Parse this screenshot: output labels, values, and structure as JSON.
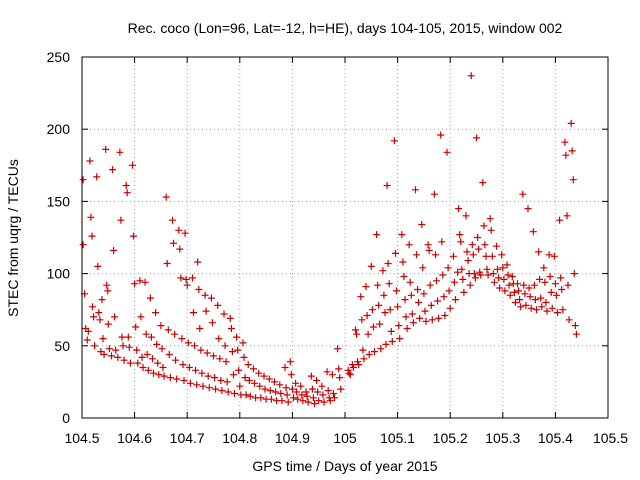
{
  "chart_data": {
    "type": "scatter",
    "title": "Rec. coco (Lon=96, Lat=-12, h=HE), days 104-105, 2015, window 002",
    "xlabel": "GPS time / Days of year 2015",
    "ylabel": "STEC from uqrg / TECUs",
    "xlim": [
      104.5,
      105.5
    ],
    "ylim": [
      0,
      250
    ],
    "x_ticks": [
      104.5,
      104.6,
      104.7,
      104.8,
      104.9,
      105,
      105.1,
      105.2,
      105.3,
      105.4,
      105.5
    ],
    "x_tick_labels": [
      "104.5",
      "104.6",
      "104.7",
      "104.8",
      "104.9",
      "105",
      "105.1",
      "105.2",
      "105.3",
      "105.4",
      "105.5"
    ],
    "y_ticks": [
      0,
      50,
      100,
      150,
      200,
      250
    ],
    "y_tick_labels": [
      "0",
      "50",
      "100",
      "150",
      "200",
      "250"
    ],
    "grid": true,
    "legend": "none",
    "marker": "+",
    "color": "#cc0000",
    "points": [
      [
        104.502,
        165
      ],
      [
        104.502,
        120
      ],
      [
        104.505,
        86
      ],
      [
        104.507,
        62
      ],
      [
        104.51,
        54
      ],
      [
        104.512,
        60
      ],
      [
        104.515,
        178
      ],
      [
        104.517,
        139
      ],
      [
        104.519,
        126
      ],
      [
        104.52,
        77
      ],
      [
        104.522,
        70
      ],
      [
        104.524,
        50
      ],
      [
        104.528,
        167
      ],
      [
        104.53,
        105
      ],
      [
        104.532,
        73
      ],
      [
        104.534,
        68
      ],
      [
        104.536,
        46
      ],
      [
        104.538,
        82
      ],
      [
        104.54,
        55
      ],
      [
        104.542,
        44
      ],
      [
        104.545,
        186
      ],
      [
        104.547,
        92
      ],
      [
        104.549,
        88
      ],
      [
        104.55,
        65
      ],
      [
        104.552,
        48
      ],
      [
        104.556,
        43
      ],
      [
        104.558,
        172
      ],
      [
        104.56,
        116
      ],
      [
        104.562,
        70
      ],
      [
        104.564,
        47
      ],
      [
        104.568,
        42
      ],
      [
        104.572,
        184
      ],
      [
        104.574,
        137
      ],
      [
        104.576,
        56
      ],
      [
        104.578,
        50
      ],
      [
        104.58,
        40
      ],
      [
        104.584,
        161
      ],
      [
        104.586,
        156
      ],
      [
        104.588,
        56
      ],
      [
        104.59,
        49
      ],
      [
        104.592,
        38
      ],
      [
        104.596,
        175
      ],
      [
        104.598,
        126
      ],
      [
        104.6,
        93
      ],
      [
        104.602,
        63
      ],
      [
        104.604,
        47
      ],
      [
        104.606,
        38
      ],
      [
        104.61,
        95
      ],
      [
        104.612,
        70
      ],
      [
        104.614,
        42
      ],
      [
        104.616,
        35
      ],
      [
        104.62,
        94
      ],
      [
        104.622,
        58
      ],
      [
        104.624,
        44
      ],
      [
        104.626,
        33
      ],
      [
        104.63,
        83
      ],
      [
        104.632,
        56
      ],
      [
        104.634,
        41
      ],
      [
        104.636,
        31
      ],
      [
        104.64,
        73
      ],
      [
        104.642,
        51
      ],
      [
        104.644,
        38
      ],
      [
        104.646,
        30
      ],
      [
        104.65,
        64
      ],
      [
        104.652,
        48
      ],
      [
        104.654,
        35
      ],
      [
        104.656,
        29
      ],
      [
        104.66,
        153
      ],
      [
        104.662,
        107
      ],
      [
        104.664,
        61
      ],
      [
        104.666,
        44
      ],
      [
        104.668,
        28
      ],
      [
        104.672,
        137
      ],
      [
        104.674,
        121
      ],
      [
        104.676,
        58
      ],
      [
        104.678,
        40
      ],
      [
        104.68,
        27
      ],
      [
        104.684,
        130
      ],
      [
        104.686,
        117
      ],
      [
        104.688,
        97
      ],
      [
        104.69,
        55
      ],
      [
        104.692,
        37
      ],
      [
        104.694,
        26
      ],
      [
        104.696,
        128
      ],
      [
        104.698,
        96
      ],
      [
        104.7,
        92
      ],
      [
        104.702,
        52
      ],
      [
        104.704,
        35
      ],
      [
        104.706,
        24
      ],
      [
        104.71,
        97
      ],
      [
        104.712,
        73
      ],
      [
        104.714,
        50
      ],
      [
        104.716,
        33
      ],
      [
        104.718,
        23
      ],
      [
        104.72,
        108
      ],
      [
        104.722,
        89
      ],
      [
        104.724,
        62
      ],
      [
        104.726,
        47
      ],
      [
        104.728,
        31
      ],
      [
        104.73,
        22
      ],
      [
        104.734,
        85
      ],
      [
        104.736,
        74
      ],
      [
        104.738,
        45
      ],
      [
        104.74,
        29
      ],
      [
        104.742,
        21
      ],
      [
        104.746,
        83
      ],
      [
        104.748,
        66
      ],
      [
        104.75,
        43
      ],
      [
        104.752,
        28
      ],
      [
        104.754,
        20
      ],
      [
        104.758,
        78
      ],
      [
        104.76,
        55
      ],
      [
        104.762,
        41
      ],
      [
        104.764,
        26
      ],
      [
        104.766,
        19
      ],
      [
        104.77,
        72
      ],
      [
        104.772,
        50
      ],
      [
        104.774,
        39
      ],
      [
        104.776,
        25
      ],
      [
        104.778,
        18
      ],
      [
        104.782,
        69
      ],
      [
        104.784,
        62
      ],
      [
        104.786,
        46
      ],
      [
        104.788,
        30
      ],
      [
        104.79,
        17
      ],
      [
        104.794,
        56
      ],
      [
        104.796,
        47
      ],
      [
        104.798,
        33
      ],
      [
        104.8,
        22
      ],
      [
        104.802,
        16
      ],
      [
        104.806,
        52
      ],
      [
        104.808,
        42
      ],
      [
        104.81,
        28
      ],
      [
        104.812,
        16
      ],
      [
        104.816,
        37
      ],
      [
        104.818,
        26
      ],
      [
        104.82,
        15
      ],
      [
        104.826,
        34
      ],
      [
        104.828,
        24
      ],
      [
        104.83,
        14
      ],
      [
        104.836,
        31
      ],
      [
        104.838,
        22
      ],
      [
        104.84,
        14
      ],
      [
        104.846,
        29
      ],
      [
        104.848,
        20
      ],
      [
        104.85,
        13
      ],
      [
        104.856,
        27
      ],
      [
        104.858,
        19
      ],
      [
        104.86,
        13
      ],
      [
        104.866,
        25
      ],
      [
        104.868,
        18
      ],
      [
        104.87,
        12
      ],
      [
        104.876,
        23
      ],
      [
        104.878,
        17
      ],
      [
        104.88,
        12
      ],
      [
        104.886,
        35
      ],
      [
        104.888,
        21
      ],
      [
        104.89,
        16
      ],
      [
        104.892,
        11
      ],
      [
        104.896,
        39
      ],
      [
        104.898,
        30
      ],
      [
        104.9,
        20
      ],
      [
        104.902,
        14
      ],
      [
        104.906,
        24
      ],
      [
        104.908,
        18
      ],
      [
        104.91,
        13
      ],
      [
        104.916,
        22
      ],
      [
        104.918,
        16
      ],
      [
        104.92,
        12
      ],
      [
        104.926,
        18
      ],
      [
        104.928,
        15
      ],
      [
        104.93,
        11
      ],
      [
        104.936,
        29
      ],
      [
        104.938,
        20
      ],
      [
        104.94,
        14
      ],
      [
        104.942,
        10
      ],
      [
        104.946,
        26
      ],
      [
        104.948,
        18
      ],
      [
        104.95,
        12
      ],
      [
        104.956,
        22
      ],
      [
        104.958,
        16
      ],
      [
        104.96,
        11
      ],
      [
        104.966,
        32
      ],
      [
        104.968,
        19
      ],
      [
        104.97,
        14
      ],
      [
        104.972,
        12
      ],
      [
        104.976,
        30
      ],
      [
        104.978,
        17
      ],
      [
        104.98,
        14
      ],
      [
        104.986,
        48
      ],
      [
        104.988,
        34
      ],
      [
        104.99,
        28
      ],
      [
        104.992,
        20
      ],
      [
        105.006,
        33
      ],
      [
        105.008,
        31
      ],
      [
        105.01,
        30
      ],
      [
        105.014,
        37
      ],
      [
        105.016,
        35
      ],
      [
        105.02,
        61
      ],
      [
        105.022,
        58
      ],
      [
        105.024,
        39
      ],
      [
        105.026,
        37
      ],
      [
        105.03,
        84
      ],
      [
        105.032,
        68
      ],
      [
        105.034,
        47
      ],
      [
        105.036,
        41
      ],
      [
        105.04,
        91
      ],
      [
        105.042,
        71
      ],
      [
        105.044,
        58
      ],
      [
        105.046,
        44
      ],
      [
        105.05,
        105
      ],
      [
        105.052,
        75
      ],
      [
        105.054,
        63
      ],
      [
        105.056,
        46
      ],
      [
        105.06,
        127
      ],
      [
        105.062,
        92
      ],
      [
        105.064,
        78
      ],
      [
        105.066,
        65
      ],
      [
        105.068,
        48
      ],
      [
        105.072,
        102
      ],
      [
        105.074,
        85
      ],
      [
        105.076,
        73
      ],
      [
        105.078,
        51
      ],
      [
        105.08,
        161
      ],
      [
        105.082,
        107
      ],
      [
        105.084,
        93
      ],
      [
        105.086,
        75
      ],
      [
        105.088,
        60
      ],
      [
        105.09,
        53
      ],
      [
        105.094,
        192
      ],
      [
        105.096,
        114
      ],
      [
        105.098,
        88
      ],
      [
        105.1,
        77
      ],
      [
        105.102,
        64
      ],
      [
        105.104,
        55
      ],
      [
        105.108,
        127
      ],
      [
        105.11,
        108
      ],
      [
        105.112,
        98
      ],
      [
        105.114,
        82
      ],
      [
        105.116,
        70
      ],
      [
        105.118,
        62
      ],
      [
        105.122,
        120
      ],
      [
        105.124,
        94
      ],
      [
        105.126,
        85
      ],
      [
        105.128,
        72
      ],
      [
        105.13,
        66
      ],
      [
        105.134,
        158
      ],
      [
        105.136,
        113
      ],
      [
        105.138,
        89
      ],
      [
        105.14,
        80
      ],
      [
        105.142,
        69
      ],
      [
        105.146,
        134
      ],
      [
        105.148,
        104
      ],
      [
        105.15,
        86
      ],
      [
        105.152,
        74
      ],
      [
        105.154,
        67
      ],
      [
        105.158,
        120
      ],
      [
        105.16,
        116
      ],
      [
        105.162,
        92
      ],
      [
        105.164,
        78
      ],
      [
        105.166,
        68
      ],
      [
        105.17,
        155
      ],
      [
        105.172,
        113
      ],
      [
        105.174,
        95
      ],
      [
        105.176,
        81
      ],
      [
        105.178,
        69
      ],
      [
        105.182,
        196
      ],
      [
        105.184,
        122
      ],
      [
        105.186,
        99
      ],
      [
        105.188,
        84
      ],
      [
        105.19,
        71
      ],
      [
        105.194,
        184
      ],
      [
        105.196,
        104
      ],
      [
        105.198,
        88
      ],
      [
        105.2,
        76
      ],
      [
        105.206,
        112
      ],
      [
        105.208,
        94
      ],
      [
        105.21,
        82
      ],
      [
        105.214,
        101
      ],
      [
        105.216,
        145
      ],
      [
        105.218,
        127
      ],
      [
        105.22,
        122
      ],
      [
        105.222,
        103
      ],
      [
        105.224,
        96
      ],
      [
        105.226,
        87
      ],
      [
        105.23,
        140
      ],
      [
        105.232,
        115
      ],
      [
        105.234,
        109
      ],
      [
        105.236,
        100
      ],
      [
        105.238,
        92
      ],
      [
        105.24,
        237
      ],
      [
        105.242,
        120
      ],
      [
        105.244,
        113
      ],
      [
        105.246,
        100
      ],
      [
        105.248,
        97
      ],
      [
        105.25,
        194
      ],
      [
        105.252,
        125
      ],
      [
        105.254,
        117
      ],
      [
        105.256,
        101
      ],
      [
        105.258,
        99
      ],
      [
        105.262,
        163
      ],
      [
        105.264,
        133
      ],
      [
        105.266,
        120
      ],
      [
        105.268,
        112
      ],
      [
        105.27,
        103
      ],
      [
        105.272,
        99
      ],
      [
        105.276,
        138
      ],
      [
        105.278,
        130
      ],
      [
        105.28,
        112
      ],
      [
        105.282,
        100
      ],
      [
        105.284,
        94
      ],
      [
        105.288,
        119
      ],
      [
        105.29,
        103
      ],
      [
        105.292,
        97
      ],
      [
        105.294,
        90
      ],
      [
        105.298,
        113
      ],
      [
        105.3,
        104
      ],
      [
        105.302,
        96
      ],
      [
        105.304,
        88
      ],
      [
        105.308,
        106
      ],
      [
        105.31,
        99
      ],
      [
        105.312,
        92
      ],
      [
        105.314,
        85
      ],
      [
        105.318,
        98
      ],
      [
        105.32,
        93
      ],
      [
        105.322,
        87
      ],
      [
        105.324,
        80
      ],
      [
        105.328,
        93
      ],
      [
        105.33,
        88
      ],
      [
        105.332,
        82
      ],
      [
        105.334,
        77
      ],
      [
        105.338,
        155
      ],
      [
        105.34,
        92
      ],
      [
        105.342,
        86
      ],
      [
        105.344,
        78
      ],
      [
        105.348,
        145
      ],
      [
        105.35,
        90
      ],
      [
        105.352,
        84
      ],
      [
        105.354,
        76
      ],
      [
        105.358,
        129
      ],
      [
        105.36,
        92
      ],
      [
        105.362,
        82
      ],
      [
        105.364,
        75
      ],
      [
        105.368,
        115
      ],
      [
        105.37,
        96
      ],
      [
        105.372,
        83
      ],
      [
        105.374,
        77
      ],
      [
        105.378,
        104
      ],
      [
        105.38,
        94
      ],
      [
        105.382,
        80
      ],
      [
        105.384,
        74
      ],
      [
        105.388,
        113
      ],
      [
        105.39,
        98
      ],
      [
        105.392,
        87
      ],
      [
        105.394,
        76
      ],
      [
        105.398,
        112
      ],
      [
        105.4,
        93
      ],
      [
        105.402,
        85
      ],
      [
        105.404,
        73
      ],
      [
        105.408,
        137
      ],
      [
        105.41,
        97
      ],
      [
        105.412,
        89
      ],
      [
        105.414,
        75
      ],
      [
        105.418,
        191
      ],
      [
        105.42,
        182
      ],
      [
        105.422,
        140
      ],
      [
        105.424,
        92
      ],
      [
        105.426,
        68
      ],
      [
        105.43,
        204
      ],
      [
        105.432,
        185
      ],
      [
        105.434,
        165
      ],
      [
        105.436,
        100
      ],
      [
        105.438,
        64
      ],
      [
        105.44,
        58
      ]
    ]
  }
}
